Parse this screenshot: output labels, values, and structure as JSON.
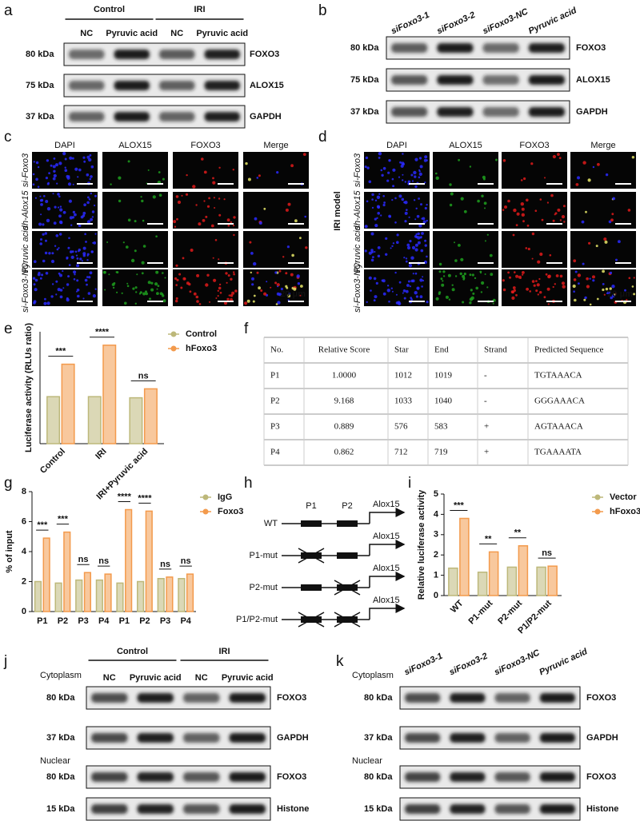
{
  "panels": {
    "a": {
      "letter": "a",
      "groups": [
        "Control",
        "IRI"
      ],
      "lanes": [
        "NC",
        "Pyruvic acid",
        "NC",
        "Pyruvic acid"
      ],
      "rows": [
        {
          "size": "80 kDa",
          "protein": "FOXO3"
        },
        {
          "size": "75 kDa",
          "protein": "ALOX15"
        },
        {
          "size": "37 kDa",
          "protein": "GAPDH"
        }
      ]
    },
    "b": {
      "letter": "b",
      "lanes": [
        "siFoxo3-1",
        "siFoxo3-2",
        "siFoxo3-NC",
        "Pyruvic acid"
      ],
      "rows": [
        {
          "size": "80 kDa",
          "protein": "FOXO3"
        },
        {
          "size": "75 kDa",
          "protein": "ALOX15"
        },
        {
          "size": "37 kDa",
          "protein": "GAPDH"
        }
      ]
    },
    "c": {
      "letter": "c",
      "channels": [
        "DAPI",
        "ALOX15",
        "FOXO3",
        "Merge"
      ],
      "channel_colors": [
        "#2a2aff",
        "#1fa01f",
        "#e01b1b",
        "#1fa01f"
      ],
      "rows": [
        "si-Foxo3",
        "sh-Alox15",
        "Pyruvic acid",
        "si-Foxo3-NC"
      ],
      "scale": "20 μm"
    },
    "d": {
      "letter": "d",
      "side_label": "IRI model",
      "channels": [
        "DAPI",
        "ALOX15",
        "FOXO3",
        "Merge"
      ],
      "channel_colors": [
        "#2a2aff",
        "#1fa01f",
        "#e01b1b",
        "#1fa01f"
      ],
      "rows": [
        "si-Foxo3",
        "sh-Alox15",
        "Pyruvic acid",
        "si-Foxo3-NC"
      ],
      "scale": "20 μm"
    },
    "e": {
      "letter": "e"
    },
    "f": {
      "letter": "f",
      "header": [
        "No.",
        "Relative Score",
        "Star",
        "End",
        "Strand",
        "Predicted Sequence"
      ],
      "rows": [
        [
          "P1",
          "1.0000",
          "1012",
          "1019",
          "-",
          "TGTAAACA"
        ],
        [
          "P2",
          "9.168",
          "1033",
          "1040",
          "-",
          "GGGAAACA"
        ],
        [
          "P3",
          "0.889",
          "576",
          "583",
          "+",
          "AGTAAACA"
        ],
        [
          "P4",
          "0.862",
          "712",
          "719",
          "+",
          "TGAAAATA"
        ]
      ]
    },
    "g": {
      "letter": "g"
    },
    "h": {
      "letter": "h",
      "sites": [
        "P1",
        "P2"
      ],
      "gene": "Alox15",
      "rows": [
        "WT",
        "P1-mut",
        "P2-mut",
        "P1/P2-mut"
      ]
    },
    "i": {
      "letter": "i"
    },
    "j": {
      "letter": "j",
      "groups": [
        "Control",
        "IRI"
      ],
      "lanes": [
        "NC",
        "Pyruvic acid",
        "NC",
        "Pyruvic acid"
      ],
      "sections": [
        {
          "name": "Cytoplasm",
          "rows": [
            {
              "size": "80 kDa",
              "protein": "FOXO3"
            },
            {
              "size": "37 kDa",
              "protein": "GAPDH"
            }
          ]
        },
        {
          "name": "Nuclear",
          "rows": [
            {
              "size": "80 kDa",
              "protein": "FOXO3"
            },
            {
              "size": "15 kDa",
              "protein": "Histone"
            }
          ]
        }
      ]
    },
    "k": {
      "letter": "k",
      "lanes": [
        "siFoxo3-1",
        "siFoxo3-2",
        "siFoxo3-NC",
        "Pyruvic acid"
      ],
      "sections": [
        {
          "name": "Cytoplasm",
          "rows": [
            {
              "size": "80 kDa",
              "protein": "FOXO3"
            },
            {
              "size": "37 kDa",
              "protein": "GAPDH"
            }
          ]
        },
        {
          "name": "Nuclear",
          "rows": [
            {
              "size": "80 kDa",
              "protein": "FOXO3"
            },
            {
              "size": "15 kDa",
              "protein": "Histone"
            }
          ]
        }
      ]
    }
  },
  "chart_data": [
    {
      "type": "bar",
      "y_label": "Luciferase activity (RLUs ratio)",
      "categories": [
        "Control",
        "IRI",
        "IRI+Pyruvic acid"
      ],
      "series": [
        {
          "name": "Control",
          "color": "#bdb87a",
          "values": [
            21,
            21,
            20.5
          ]
        },
        {
          "name": "hFoxo3",
          "color": "#f39a4c",
          "values": [
            35.5,
            44,
            24.5
          ]
        }
      ],
      "ylim": [
        0,
        50
      ],
      "significance": [
        "***",
        "****",
        "ns"
      ]
    },
    {
      "type": "bar",
      "y_label": "% of input",
      "categories": [
        "P1",
        "P2",
        "P3",
        "P4",
        "P1",
        "P2",
        "P3",
        "P4"
      ],
      "series": [
        {
          "name": "IgG",
          "color": "#bdb87a",
          "values": [
            2,
            1.9,
            2.1,
            2.1,
            1.9,
            2,
            2.2,
            2.2
          ]
        },
        {
          "name": "Foxo3",
          "color": "#f39a4c",
          "values": [
            4.9,
            5.3,
            2.6,
            2.5,
            6.8,
            6.7,
            2.3,
            2.5
          ]
        }
      ],
      "ylim": [
        0,
        8
      ],
      "yticks": [
        0,
        2,
        4,
        6,
        8
      ],
      "significance": [
        "***",
        "***",
        "ns",
        "ns",
        "****",
        "****",
        "ns",
        "ns"
      ]
    },
    {
      "type": "bar",
      "y_label": "Relative luciferase activity",
      "categories": [
        "WT",
        "P1-mut",
        "P2-mut",
        "P1/P2-mut"
      ],
      "series": [
        {
          "name": "Vector",
          "color": "#bdb87a",
          "values": [
            1.35,
            1.15,
            1.4,
            1.4
          ]
        },
        {
          "name": "hFoxo3",
          "color": "#f39a4c",
          "values": [
            3.8,
            2.15,
            2.45,
            1.45
          ]
        }
      ],
      "ylim": [
        0,
        5
      ],
      "yticks": [
        0,
        1,
        2,
        3,
        4,
        5
      ],
      "significance": [
        "***",
        "**",
        "**",
        "ns"
      ]
    }
  ]
}
